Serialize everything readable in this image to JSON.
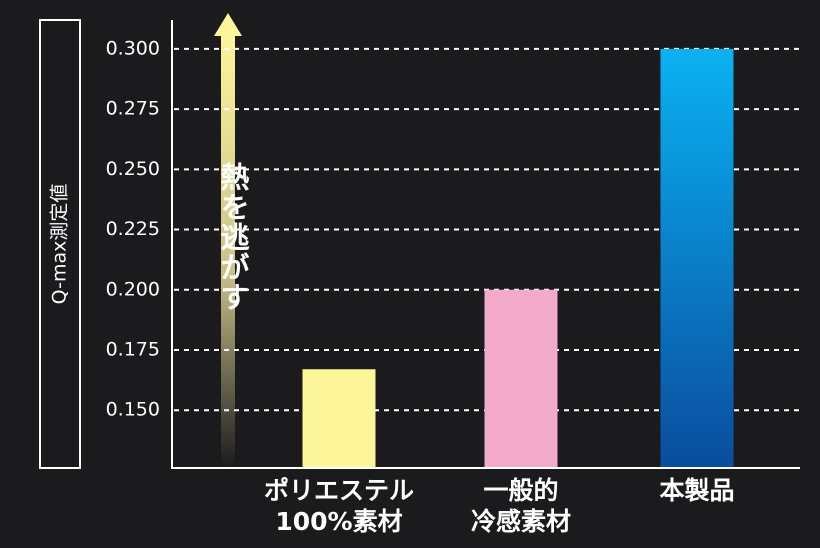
{
  "chart_data": {
    "type": "bar",
    "y_label": "Q-max測定値",
    "annotation": "熱を逃がす",
    "categories": [
      "ポリエステル\n100%素材",
      "一般的\n冷感素材",
      "本製品"
    ],
    "values": [
      0.167,
      0.2,
      0.3
    ],
    "colors": [
      "#fdf59a",
      "#f4aacb",
      [
        "#0ab2f2",
        "#0a4c9e"
      ]
    ],
    "ylim": [
      0.126,
      0.312
    ],
    "yticks": [
      {
        "value": 0.15,
        "label": "0.150"
      },
      0.175,
      {
        "value": 0.2,
        "label": "0.200"
      },
      0.225,
      {
        "value": 0.25,
        "label": "0.250"
      },
      0.275,
      {
        "value": 0.3,
        "label": "0.300"
      }
    ],
    "grid": true
  }
}
